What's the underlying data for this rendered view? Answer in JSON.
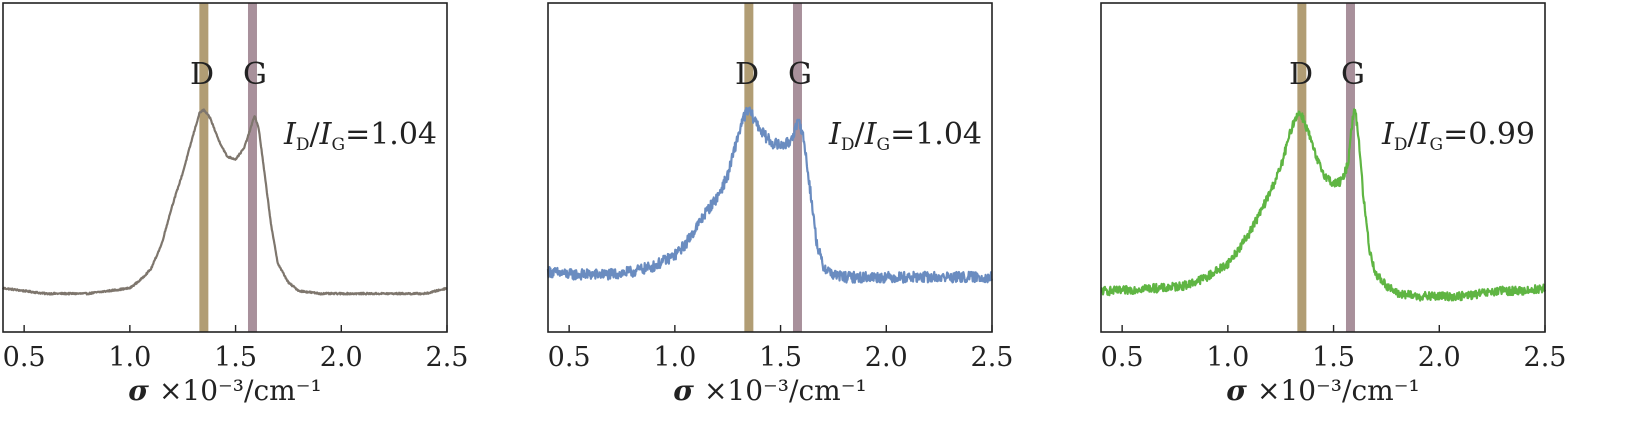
{
  "colors": {
    "d_band": "#a99265",
    "g_band": "#9e8490",
    "axes": "#222222"
  },
  "chart_data": [
    {
      "type": "line",
      "series": [
        {
          "color": "#7e766d",
          "noise": 0.003,
          "x": [
            0.4,
            0.5,
            0.6,
            0.7,
            0.8,
            0.9,
            1.0,
            1.05,
            1.1,
            1.15,
            1.2,
            1.25,
            1.3,
            1.33,
            1.35,
            1.38,
            1.42,
            1.46,
            1.5,
            1.54,
            1.57,
            1.59,
            1.61,
            1.64,
            1.67,
            1.7,
            1.75,
            1.8,
            1.9,
            2.0,
            2.1,
            2.2,
            2.3,
            2.4,
            2.5
          ],
          "y": [
            0.16,
            0.15,
            0.14,
            0.14,
            0.14,
            0.15,
            0.16,
            0.19,
            0.23,
            0.32,
            0.46,
            0.58,
            0.72,
            0.8,
            0.81,
            0.78,
            0.7,
            0.64,
            0.63,
            0.67,
            0.74,
            0.79,
            0.74,
            0.56,
            0.38,
            0.25,
            0.18,
            0.15,
            0.14,
            0.14,
            0.14,
            0.14,
            0.14,
            0.14,
            0.16
          ]
        }
      ],
      "xlim": [
        0.4,
        2.5
      ],
      "ylim": [
        0,
        1.2
      ],
      "xticks": [
        "0.5",
        "1.0",
        "1.5",
        "2.0",
        "2.5"
      ],
      "xlabel": {
        "symbol": "σ",
        "rest": "×10⁻³/cm⁻¹"
      },
      "bands": [
        {
          "label": "D",
          "x": 1.35
        },
        {
          "label": "G",
          "x": 1.58
        }
      ],
      "ratio": {
        "prefix": "I",
        "sub1": "D",
        "slash": "/",
        "sub2": "G",
        "value": "=1.04"
      }
    },
    {
      "type": "line",
      "series": [
        {
          "color": "#6a8cc0",
          "noise": 0.02,
          "x": [
            0.4,
            0.5,
            0.6,
            0.7,
            0.8,
            0.9,
            1.0,
            1.05,
            1.1,
            1.15,
            1.2,
            1.25,
            1.3,
            1.33,
            1.35,
            1.38,
            1.42,
            1.46,
            1.5,
            1.54,
            1.57,
            1.59,
            1.61,
            1.64,
            1.67,
            1.7,
            1.75,
            1.8,
            1.9,
            2.0,
            2.1,
            2.2,
            2.3,
            2.4,
            2.5
          ],
          "y": [
            0.22,
            0.21,
            0.21,
            0.21,
            0.22,
            0.24,
            0.28,
            0.32,
            0.38,
            0.44,
            0.49,
            0.57,
            0.72,
            0.79,
            0.81,
            0.77,
            0.72,
            0.69,
            0.68,
            0.69,
            0.74,
            0.77,
            0.7,
            0.52,
            0.33,
            0.24,
            0.21,
            0.2,
            0.2,
            0.2,
            0.2,
            0.2,
            0.2,
            0.2,
            0.2
          ]
        }
      ],
      "xlim": [
        0.4,
        2.5
      ],
      "ylim": [
        0,
        1.2
      ],
      "xticks": [
        "0.5",
        "1.0",
        "1.5",
        "2.0",
        "2.5"
      ],
      "xlabel": {
        "symbol": "σ",
        "rest": "×10⁻³/cm⁻¹"
      },
      "bands": [
        {
          "label": "D",
          "x": 1.35
        },
        {
          "label": "G",
          "x": 1.58
        }
      ],
      "ratio": {
        "prefix": "I",
        "sub1": "D",
        "slash": "/",
        "sub2": "G",
        "value": "=1.04"
      }
    },
    {
      "type": "line",
      "series": [
        {
          "color": "#5fb543",
          "noise": 0.016,
          "x": [
            0.4,
            0.5,
            0.6,
            0.7,
            0.8,
            0.9,
            1.0,
            1.05,
            1.1,
            1.15,
            1.2,
            1.25,
            1.3,
            1.33,
            1.35,
            1.38,
            1.42,
            1.46,
            1.5,
            1.54,
            1.57,
            1.58,
            1.6,
            1.62,
            1.64,
            1.67,
            1.7,
            1.75,
            1.8,
            1.9,
            2.0,
            2.1,
            2.2,
            2.3,
            2.4,
            2.5
          ],
          "y": [
            0.15,
            0.15,
            0.16,
            0.16,
            0.17,
            0.2,
            0.25,
            0.3,
            0.36,
            0.43,
            0.51,
            0.6,
            0.74,
            0.8,
            0.79,
            0.73,
            0.63,
            0.57,
            0.54,
            0.55,
            0.62,
            0.72,
            0.82,
            0.7,
            0.5,
            0.3,
            0.21,
            0.17,
            0.14,
            0.13,
            0.13,
            0.13,
            0.14,
            0.15,
            0.15,
            0.16
          ]
        }
      ],
      "xlim": [
        0.4,
        2.5
      ],
      "ylim": [
        0,
        1.2
      ],
      "xticks": [
        "0.5",
        "1.0",
        "1.5",
        "2.0",
        "2.5"
      ],
      "xlabel": {
        "symbol": "σ",
        "rest": "×10⁻³/cm⁻¹"
      },
      "bands": [
        {
          "label": "D",
          "x": 1.35
        },
        {
          "label": "G",
          "x": 1.58
        }
      ],
      "ratio": {
        "prefix": "I",
        "sub1": "D",
        "slash": "/",
        "sub2": "G",
        "value": "=0.99"
      }
    }
  ]
}
